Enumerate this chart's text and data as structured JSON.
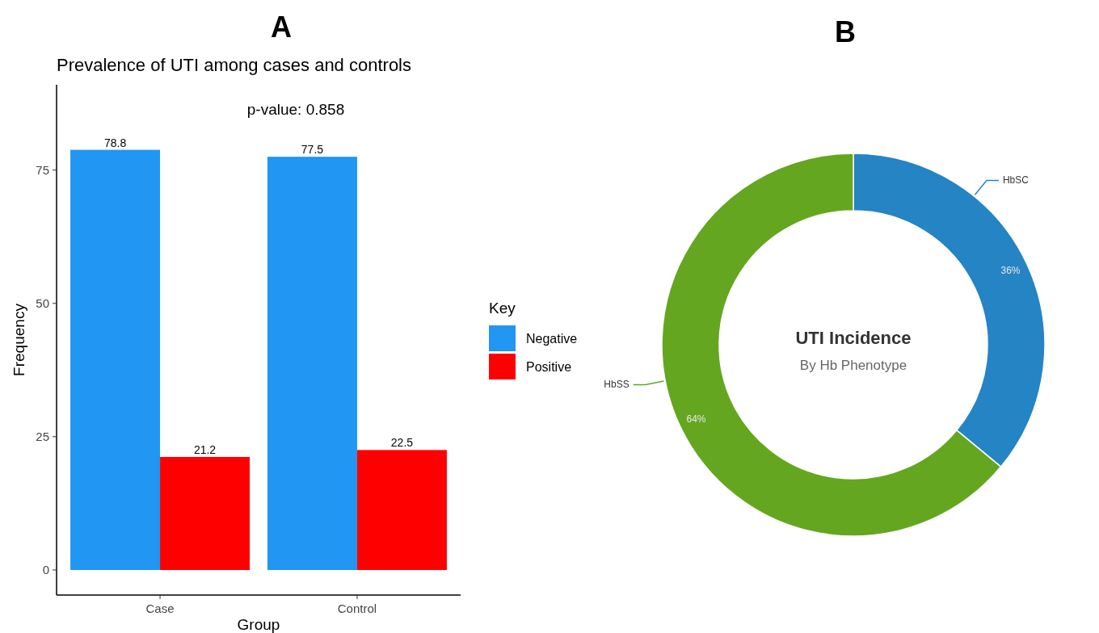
{
  "chart_data": [
    {
      "type": "bar",
      "title": "A",
      "subtitle": "Prevalence of UTI among cases and controls",
      "xlabel": "Group",
      "ylabel": "Frequency",
      "legend_title": "Key",
      "annotations": [
        "p-value:  0.858"
      ],
      "categories": [
        "Case",
        "Control"
      ],
      "series": [
        {
          "name": "Negative",
          "color": "#2196f3",
          "values": [
            78.8,
            77.5
          ]
        },
        {
          "name": "Positive",
          "color": "#ff0000",
          "values": [
            21.2,
            22.5
          ]
        }
      ],
      "ylim": [
        -4.7,
        91
      ],
      "yticks": [
        0,
        25,
        50,
        75
      ],
      "grid": false,
      "legend": "right",
      "data_labels": true
    },
    {
      "type": "donut",
      "title": "B",
      "annotations": [
        "UTI Incidence",
        "By Hb Phenotype"
      ],
      "categories": [
        "HbSC",
        "HbSS"
      ],
      "values": [
        36,
        64
      ],
      "colors": [
        "#2484c4",
        "#65a620"
      ],
      "value_labels": [
        "36%",
        "64%"
      ]
    }
  ]
}
